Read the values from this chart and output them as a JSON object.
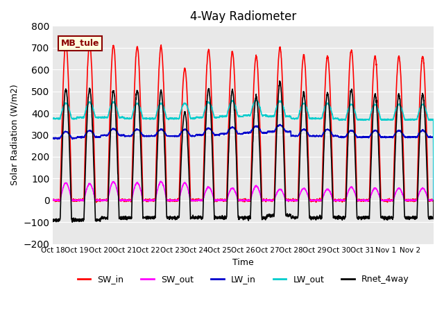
{
  "title": "4-Way Radiometer",
  "xlabel": "Time",
  "ylabel": "Solar Radiation (W/m2)",
  "ylim": [
    -200,
    800
  ],
  "yticks": [
    -200,
    -100,
    0,
    100,
    200,
    300,
    400,
    500,
    600,
    700,
    800
  ],
  "x_labels": [
    "Oct 18",
    "Oct 19",
    "Oct 20",
    "Oct 21",
    "Oct 22",
    "Oct 23",
    "Oct 24",
    "Oct 25",
    "Oct 26",
    "Oct 27",
    "Oct 28",
    "Oct 29",
    "Oct 30",
    "Oct 31",
    "Nov 1",
    "Nov 2"
  ],
  "station_label": "MB_tule",
  "legend": [
    {
      "label": "SW_in",
      "color": "#ff0000"
    },
    {
      "label": "SW_out",
      "color": "#ff00ff"
    },
    {
      "label": "LW_in",
      "color": "#0000cc"
    },
    {
      "label": "LW_out",
      "color": "#00cccc"
    },
    {
      "label": "Rnet_4way",
      "color": "#000000"
    }
  ],
  "n_days": 16,
  "background_color": "#e8e8e8",
  "sw_in_peaks": [
    720,
    715,
    710,
    705,
    705,
    605,
    690,
    680,
    660,
    700,
    665,
    660,
    690,
    660,
    660,
    660
  ],
  "sw_out_peaks": [
    80,
    75,
    85,
    80,
    85,
    80,
    60,
    55,
    65,
    50,
    55,
    50,
    60,
    55,
    55,
    55
  ],
  "lw_in_base": [
    285,
    290,
    298,
    295,
    295,
    295,
    300,
    305,
    310,
    315,
    295,
    295,
    290,
    290,
    290,
    290
  ],
  "lw_out_base": [
    375,
    380,
    380,
    375,
    375,
    375,
    380,
    385,
    390,
    385,
    375,
    375,
    370,
    370,
    370,
    370
  ],
  "rnet_night": -100,
  "rnet_day_peak": 510
}
